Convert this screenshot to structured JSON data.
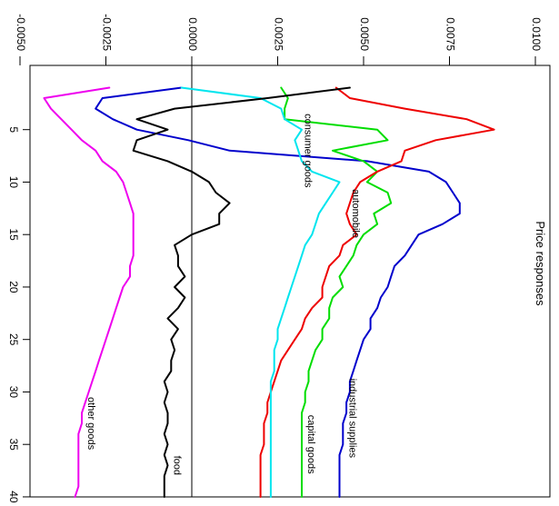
{
  "chart_data": {
    "type": "line",
    "title": "Price responses",
    "orientation": "rotated 90° clockwise (horizon axis runs top-to-bottom, value axis runs left-to-right)",
    "x": [
      1,
      2,
      3,
      4,
      5,
      6,
      7,
      8,
      9,
      10,
      11,
      12,
      13,
      14,
      15,
      16,
      17,
      18,
      19,
      20,
      21,
      22,
      23,
      24,
      25,
      26,
      27,
      28,
      29,
      30,
      31,
      32,
      33,
      34,
      35,
      36,
      37,
      38,
      39,
      40
    ],
    "x_ticks": [
      5,
      10,
      15,
      20,
      25,
      30,
      35,
      40
    ],
    "y_ticks": [
      -0.005,
      -0.0025,
      0.0,
      0.0025,
      0.005,
      0.0075,
      0.01
    ],
    "y_tick_labels": [
      "-0.0050",
      "-0.0025",
      "0.0000",
      "0.0025",
      "0.0050",
      "0.0075",
      "0.0100"
    ],
    "xlim": [
      -1,
      41.5
    ],
    "ylim": [
      -0.0052,
      0.0101
    ],
    "zero_line": true,
    "grid": false,
    "series": [
      {
        "name": "industrial supplies",
        "color": "#0000cc",
        "label_at_x": 32.5,
        "values": [
          -0.0003,
          -0.0026,
          -0.0028,
          -0.0023,
          -0.0016,
          -0.0001,
          0.0011,
          0.0051,
          0.0069,
          0.0074,
          0.0076,
          0.0078,
          0.0078,
          0.0073,
          0.0066,
          0.0064,
          0.0062,
          0.0059,
          0.0058,
          0.0057,
          0.0055,
          0.0054,
          0.0052,
          0.0052,
          0.005,
          0.0049,
          0.0048,
          0.0047,
          0.0046,
          0.0046,
          0.0045,
          0.0045,
          0.0044,
          0.0044,
          0.0044,
          0.0043,
          0.0043,
          0.0043,
          0.0043,
          0.0043
        ]
      },
      {
        "name": "capital goods",
        "color": "#00dd00",
        "label_at_x": 35,
        "values": [
          0.0026,
          0.0028,
          0.0027,
          0.0027,
          0.0054,
          0.0057,
          0.0041,
          0.005,
          0.0054,
          0.0051,
          0.0057,
          0.0058,
          0.0053,
          0.0054,
          0.005,
          0.0048,
          0.0047,
          0.0045,
          0.0043,
          0.0044,
          0.0041,
          0.004,
          0.004,
          0.0038,
          0.0038,
          0.0036,
          0.0035,
          0.0034,
          0.0034,
          0.0033,
          0.0033,
          0.0032,
          0.0032,
          0.0032,
          0.0032,
          0.0032,
          0.0032,
          0.0032,
          0.0032,
          0.0032
        ]
      },
      {
        "name": "automobile",
        "color": "#ee0000",
        "label_at_x": 13,
        "values": [
          0.0042,
          0.0046,
          0.0062,
          0.008,
          0.0088,
          0.0071,
          0.0062,
          0.0061,
          0.0054,
          0.0049,
          0.0047,
          0.0046,
          0.0045,
          0.0046,
          0.0048,
          0.0044,
          0.0043,
          0.004,
          0.0039,
          0.0038,
          0.0038,
          0.0035,
          0.0033,
          0.0032,
          0.003,
          0.0028,
          0.0026,
          0.0025,
          0.0024,
          0.0023,
          0.0022,
          0.0022,
          0.0021,
          0.0021,
          0.0021,
          0.002,
          0.002,
          0.002,
          0.002,
          0.002
        ]
      },
      {
        "name": "consumer goods",
        "color": "#00e5ee",
        "label_at_x": 7,
        "values": [
          -0.0003,
          0.002,
          0.0026,
          0.0027,
          0.0032,
          0.003,
          0.0031,
          0.0032,
          0.0035,
          0.0043,
          0.0041,
          0.0039,
          0.0037,
          0.0036,
          0.0035,
          0.0033,
          0.0032,
          0.0031,
          0.003,
          0.0029,
          0.0028,
          0.0027,
          0.0026,
          0.0025,
          0.0025,
          0.0024,
          0.0024,
          0.0024,
          0.0023,
          0.0023,
          0.0023,
          0.0023,
          0.0023,
          0.0023,
          0.0023,
          0.0023,
          0.0023,
          0.0023,
          0.0023,
          0.0023
        ]
      },
      {
        "name": "food",
        "color": "#000000",
        "label_at_x": 37,
        "values": [
          0.0046,
          0.0022,
          -0.0005,
          -0.0016,
          -0.0007,
          -0.0016,
          -0.0017,
          -0.0007,
          0.0,
          0.0005,
          0.0007,
          0.0011,
          0.0008,
          0.0008,
          0.0,
          -0.0005,
          -0.0004,
          -0.0004,
          -0.0002,
          -0.0005,
          -0.0002,
          -0.0004,
          -0.0007,
          -0.0004,
          -0.0006,
          -0.0005,
          -0.0006,
          -0.0006,
          -0.0008,
          -0.0007,
          -0.0008,
          -0.0007,
          -0.0007,
          -0.0008,
          -0.0007,
          -0.0008,
          -0.0007,
          -0.0008,
          -0.0008,
          -0.0008
        ]
      },
      {
        "name": "other goods",
        "color": "#ee00ee",
        "label_at_x": 33,
        "values": [
          -0.0024,
          -0.0043,
          -0.0041,
          -0.0038,
          -0.0035,
          -0.0032,
          -0.0028,
          -0.0026,
          -0.0022,
          -0.002,
          -0.0019,
          -0.0018,
          -0.0017,
          -0.0017,
          -0.0017,
          -0.0017,
          -0.0017,
          -0.0018,
          -0.0018,
          -0.002,
          -0.0021,
          -0.0022,
          -0.0023,
          -0.0024,
          -0.0025,
          -0.0026,
          -0.0027,
          -0.0028,
          -0.0029,
          -0.003,
          -0.0031,
          -0.0032,
          -0.0032,
          -0.0033,
          -0.0033,
          -0.0033,
          -0.0033,
          -0.0033,
          -0.0033,
          -0.0034
        ]
      }
    ]
  }
}
